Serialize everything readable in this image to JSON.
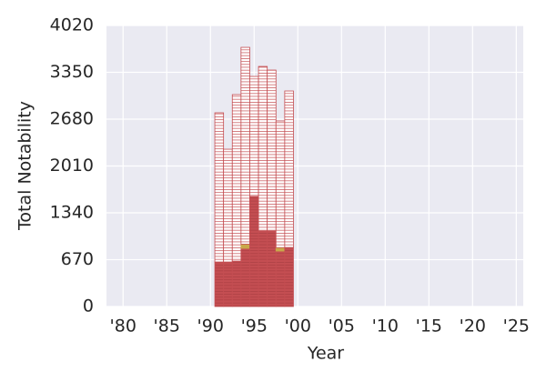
{
  "chart_data": {
    "type": "bar",
    "stacked": true,
    "x_label": "Year",
    "y_label": "Total Notability",
    "x": [
      1991,
      1992,
      1993,
      1994,
      1995,
      1996,
      1997,
      1998,
      1999
    ],
    "series": [
      {
        "color": "#c44e52",
        "style": "filled",
        "values": [
          637,
          637,
          650,
          832,
          1574,
          1080,
          1080,
          793,
          845
        ]
      },
      {
        "color": "#c9a84a",
        "style": "filled",
        "values": [
          0,
          0,
          0,
          60,
          0,
          0,
          0,
          50,
          0
        ]
      },
      {
        "color": "#c44e52",
        "style": "outlined",
        "values": [
          2134,
          1613,
          2381,
          2815,
          1717,
          2354,
          2302,
          1811,
          2238
        ]
      }
    ],
    "xlim": [
      1978.1,
      2025.8
    ],
    "xticks": [
      {
        "value": 1980,
        "label": "'80"
      },
      {
        "value": 1985,
        "label": "'85"
      },
      {
        "value": 1990,
        "label": "'90"
      },
      {
        "value": 1995,
        "label": "'95"
      },
      {
        "value": 2000,
        "label": "'00"
      },
      {
        "value": 2005,
        "label": "'05"
      },
      {
        "value": 2010,
        "label": "'10"
      },
      {
        "value": 2015,
        "label": "'15"
      },
      {
        "value": 2020,
        "label": "'20"
      },
      {
        "value": 2025,
        "label": "'25"
      }
    ],
    "ylim": [
      0,
      4020
    ],
    "yticks": [
      0,
      670,
      1340,
      2010,
      2680,
      3350,
      4020
    ],
    "grid": true,
    "background": "#eaeaf2"
  }
}
